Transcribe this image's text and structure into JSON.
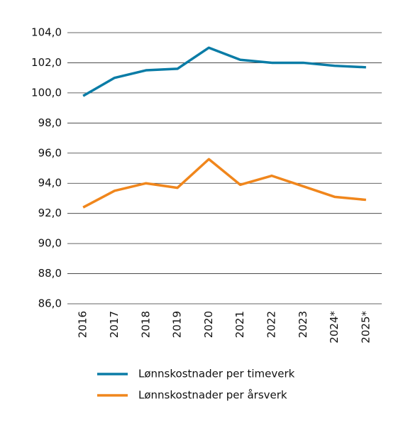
{
  "chart_data": {
    "type": "line",
    "categories": [
      "2016",
      "2017",
      "2018",
      "2019",
      "2020",
      "2021",
      "2022",
      "2023",
      "2024*",
      "2025*"
    ],
    "series": [
      {
        "name": "Lønnskostnader per timeverk",
        "color": "#0a7ca6",
        "values": [
          99.8,
          101.0,
          101.5,
          101.6,
          103.0,
          102.2,
          102.0,
          102.0,
          101.8,
          101.7
        ]
      },
      {
        "name": "Lønnskostnader per årsverk",
        "color": "#f0861c",
        "values": [
          92.4,
          93.5,
          94.0,
          93.7,
          95.6,
          93.9,
          94.5,
          93.8,
          93.1,
          92.9
        ]
      }
    ],
    "ylim": [
      86,
      104
    ],
    "yticks": [
      {
        "value": 86,
        "label": "86,0"
      },
      {
        "value": 88,
        "label": "88,0"
      },
      {
        "value": 90,
        "label": "90,0"
      },
      {
        "value": 92,
        "label": "92,0"
      },
      {
        "value": 94,
        "label": "94,0"
      },
      {
        "value": 96,
        "label": "96,0"
      },
      {
        "value": 98,
        "label": "98,0"
      },
      {
        "value": 100,
        "label": "100,0"
      },
      {
        "value": 102,
        "label": "102,0"
      },
      {
        "value": 104,
        "label": "104,0"
      }
    ],
    "grid": true
  }
}
